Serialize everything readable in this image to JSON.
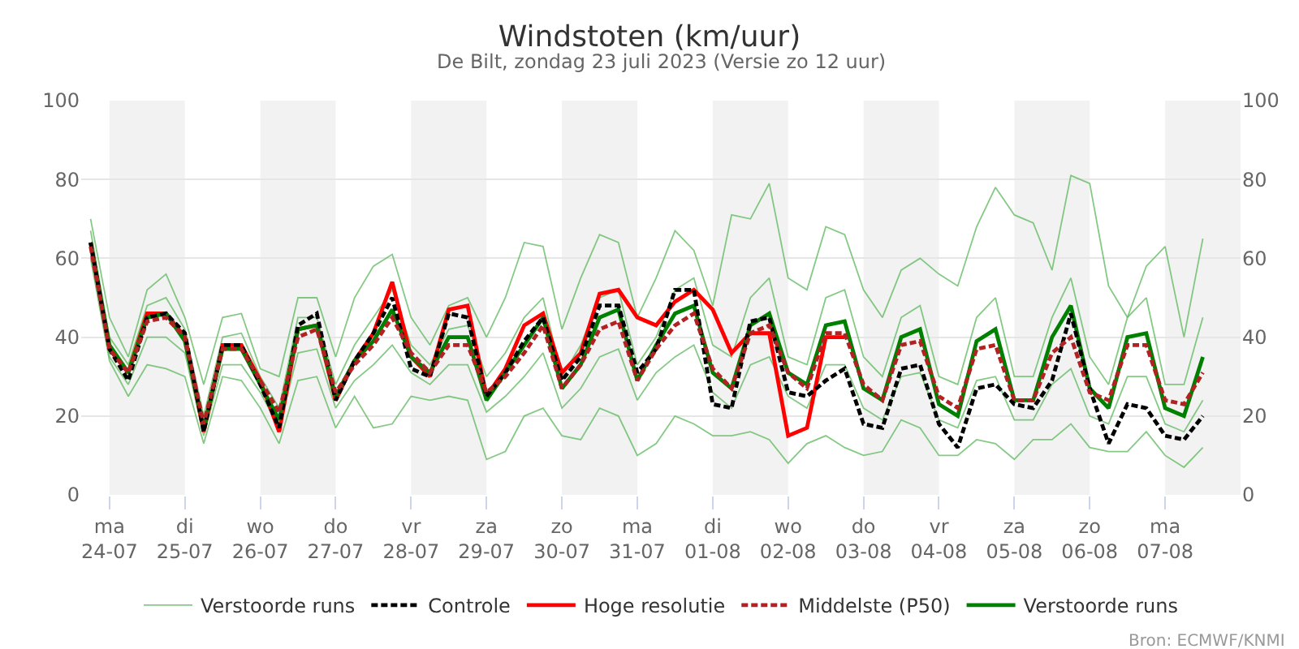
{
  "chart_data": {
    "type": "line",
    "title": "Windstoten (km/uur)",
    "subtitle": "De Bilt, zondag 23 juli 2023 (Versie zo 12 uur)",
    "x": [
      "2023-07-23T18:00",
      "2023-07-24T00:00",
      "2023-07-24T06:00",
      "2023-07-24T12:00",
      "2023-07-24T18:00",
      "2023-07-25T00:00",
      "2023-07-25T06:00",
      "2023-07-25T12:00",
      "2023-07-25T18:00",
      "2023-07-26T00:00",
      "2023-07-26T06:00",
      "2023-07-26T12:00",
      "2023-07-26T18:00",
      "2023-07-27T00:00",
      "2023-07-27T06:00",
      "2023-07-27T12:00",
      "2023-07-27T18:00",
      "2023-07-28T00:00",
      "2023-07-28T06:00",
      "2023-07-28T12:00",
      "2023-07-28T18:00",
      "2023-07-29T00:00",
      "2023-07-29T06:00",
      "2023-07-29T12:00",
      "2023-07-29T18:00",
      "2023-07-30T00:00",
      "2023-07-30T06:00",
      "2023-07-30T12:00",
      "2023-07-30T18:00",
      "2023-07-31T00:00",
      "2023-07-31T06:00",
      "2023-07-31T12:00",
      "2023-07-31T18:00",
      "2023-08-01T00:00",
      "2023-08-01T06:00",
      "2023-08-01T12:00",
      "2023-08-01T18:00",
      "2023-08-02T00:00",
      "2023-08-02T06:00",
      "2023-08-02T12:00",
      "2023-08-02T18:00",
      "2023-08-03T00:00",
      "2023-08-03T06:00",
      "2023-08-03T12:00",
      "2023-08-03T18:00",
      "2023-08-04T00:00",
      "2023-08-04T06:00",
      "2023-08-04T12:00",
      "2023-08-04T18:00",
      "2023-08-05T00:00",
      "2023-08-05T06:00",
      "2023-08-05T12:00",
      "2023-08-05T18:00",
      "2023-08-06T00:00",
      "2023-08-06T06:00",
      "2023-08-06T12:00",
      "2023-08-06T18:00",
      "2023-08-07T00:00",
      "2023-08-07T06:00",
      "2023-08-07T12:00"
    ],
    "series": [
      {
        "name": "Verstoorde runs",
        "color": "#5cb85c",
        "line_style": "solid",
        "values": [
          70,
          45,
          35,
          52,
          56,
          45,
          28,
          45,
          46,
          32,
          30,
          50,
          50,
          35,
          50,
          58,
          61,
          45,
          38,
          48,
          50,
          40,
          50,
          64,
          63,
          42,
          55,
          66,
          64,
          45,
          55,
          67,
          62,
          48,
          71,
          70,
          79,
          55,
          52,
          68,
          66,
          52,
          45,
          57,
          60,
          56,
          53,
          68,
          78,
          71,
          69,
          57,
          81,
          79,
          53,
          45,
          58,
          63,
          40,
          65
        ]
      },
      {
        "color": "#5cb85c",
        "line_style": "solid",
        "values": [
          60,
          34,
          25,
          33,
          32,
          30,
          13,
          30,
          29,
          22,
          13,
          29,
          30,
          17,
          25,
          17,
          18,
          25,
          24,
          25,
          24,
          9,
          11,
          20,
          22,
          15,
          14,
          22,
          20,
          10,
          13,
          20,
          18,
          15,
          15,
          16,
          14,
          8,
          13,
          15,
          12,
          10,
          11,
          19,
          17,
          10,
          10,
          14,
          13,
          9,
          14,
          14,
          18,
          12,
          11,
          11,
          16,
          10,
          7,
          12
        ]
      },
      {
        "color": "#5cb85c",
        "line_style": "solid",
        "values": [
          67,
          40,
          33,
          48,
          50,
          42,
          20,
          40,
          41,
          30,
          22,
          45,
          45,
          28,
          38,
          45,
          52,
          38,
          33,
          42,
          43,
          30,
          36,
          45,
          50,
          30,
          38,
          50,
          52,
          33,
          40,
          52,
          55,
          38,
          35,
          50,
          55,
          35,
          33,
          50,
          52,
          35,
          30,
          45,
          48,
          30,
          28,
          45,
          50,
          30,
          30,
          45,
          55,
          35,
          28,
          45,
          50,
          28,
          28,
          45
        ]
      },
      {
        "color": "#5cb85c",
        "line_style": "solid",
        "values": [
          61,
          35,
          28,
          40,
          40,
          36,
          15,
          33,
          33,
          26,
          17,
          36,
          37,
          22,
          29,
          33,
          38,
          31,
          28,
          33,
          33,
          21,
          25,
          30,
          36,
          22,
          27,
          35,
          37,
          24,
          31,
          35,
          38,
          26,
          22,
          33,
          35,
          25,
          22,
          33,
          33,
          22,
          19,
          30,
          31,
          19,
          17,
          29,
          30,
          19,
          19,
          28,
          32,
          20,
          18,
          30,
          30,
          18,
          16,
          24
        ]
      },
      {
        "name": "Controle",
        "color": "#000000",
        "line_style": "dashed",
        "values": [
          64,
          37,
          29,
          45,
          46,
          41,
          16,
          38,
          38,
          28,
          17,
          43,
          46,
          24,
          34,
          41,
          50,
          32,
          30,
          46,
          45,
          25,
          31,
          39,
          45,
          29,
          35,
          48,
          48,
          31,
          37,
          52,
          52,
          23,
          22,
          44,
          45,
          26,
          25,
          29,
          32,
          18,
          17,
          32,
          33,
          18,
          12,
          27,
          28,
          23,
          22,
          29,
          46,
          27,
          13,
          23,
          22,
          15,
          14,
          20
        ]
      },
      {
        "name": "Hoge resolutie",
        "color": "#ff0000",
        "line_style": "solid",
        "values": [
          64,
          37,
          31,
          46,
          46,
          40,
          16,
          38,
          38,
          29,
          16,
          42,
          43,
          24,
          34,
          41,
          54,
          35,
          30,
          47,
          48,
          25,
          32,
          43,
          46,
          31,
          36,
          51,
          52,
          45,
          43,
          49,
          52,
          47,
          36,
          41,
          41,
          15,
          17,
          40,
          40,
          null,
          null,
          null,
          null,
          null,
          null,
          null,
          null,
          null,
          null,
          null,
          null,
          null,
          null,
          null,
          null,
          null,
          null,
          null
        ]
      },
      {
        "name": "Middelste (P50)",
        "color": "#b22222",
        "line_style": "dashed",
        "values": [
          63,
          37,
          31,
          44,
          45,
          40,
          18,
          37,
          37,
          29,
          21,
          40,
          42,
          26,
          33,
          38,
          45,
          36,
          31,
          38,
          38,
          26,
          30,
          36,
          43,
          27,
          33,
          42,
          44,
          29,
          37,
          43,
          46,
          32,
          27,
          41,
          43,
          31,
          27,
          41,
          41,
          28,
          24,
          38,
          39,
          25,
          22,
          37,
          38,
          24,
          24,
          36,
          40,
          26,
          24,
          38,
          38,
          24,
          23,
          31
        ]
      },
      {
        "name": "Verstoorde runs",
        "color": "#008000",
        "line_style": "solid",
        "values": [
          64,
          38,
          31,
          45,
          46,
          39,
          17,
          37,
          37,
          28,
          19,
          42,
          43,
          25,
          34,
          39,
          47,
          35,
          31,
          40,
          40,
          24,
          31,
          38,
          45,
          27,
          33,
          45,
          47,
          29,
          38,
          46,
          48,
          31,
          27,
          43,
          46,
          31,
          28,
          43,
          44,
          27,
          24,
          40,
          42,
          23,
          20,
          39,
          42,
          24,
          24,
          40,
          48,
          27,
          22,
          40,
          41,
          22,
          20,
          35
        ]
      }
    ],
    "xlim": [
      "2023-07-23T15:00",
      "2023-08-08T00:00"
    ],
    "xticks": [
      {
        "value": "2023-07-24",
        "label": "ma\n24-07"
      },
      {
        "value": "2023-07-25",
        "label": "di\n25-07"
      },
      {
        "value": "2023-07-26",
        "label": "wo\n26-07"
      },
      {
        "value": "2023-07-27",
        "label": "do\n27-07"
      },
      {
        "value": "2023-07-28",
        "label": "vr\n28-07"
      },
      {
        "value": "2023-07-29",
        "label": "za\n29-07"
      },
      {
        "value": "2023-07-30",
        "label": "zo\n30-07"
      },
      {
        "value": "2023-07-31",
        "label": "ma\n31-07"
      },
      {
        "value": "2023-08-01",
        "label": "di\n01-08"
      },
      {
        "value": "2023-08-02",
        "label": "wo\n02-08"
      },
      {
        "value": "2023-08-03",
        "label": "do\n03-08"
      },
      {
        "value": "2023-08-04",
        "label": "vr\n04-08"
      },
      {
        "value": "2023-08-05",
        "label": "za\n05-08"
      },
      {
        "value": "2023-08-06",
        "label": "zo\n06-08"
      },
      {
        "value": "2023-08-07",
        "label": "ma\n07-08"
      }
    ],
    "ylim": [
      0,
      100
    ],
    "yticks": [
      0,
      20,
      40,
      60,
      80,
      100
    ],
    "y2lim": [
      0,
      100
    ],
    "y2ticks": [
      0,
      20,
      40,
      60,
      80,
      100
    ],
    "bands": [
      {
        "axis": "x",
        "from": "2023-07-24",
        "to": "2023-07-25",
        "color": "#f2f2f2"
      },
      {
        "axis": "x",
        "from": "2023-07-26",
        "to": "2023-07-27",
        "color": "#f2f2f2"
      },
      {
        "axis": "x",
        "from": "2023-07-28",
        "to": "2023-07-29",
        "color": "#f2f2f2"
      },
      {
        "axis": "x",
        "from": "2023-07-30",
        "to": "2023-07-31",
        "color": "#f2f2f2"
      },
      {
        "axis": "x",
        "from": "2023-08-01",
        "to": "2023-08-02",
        "color": "#f2f2f2"
      },
      {
        "axis": "x",
        "from": "2023-08-03",
        "to": "2023-08-04",
        "color": "#f2f2f2"
      },
      {
        "axis": "x",
        "from": "2023-08-05",
        "to": "2023-08-06",
        "color": "#f2f2f2"
      },
      {
        "axis": "x",
        "from": "2023-08-07",
        "to": "2023-08-08",
        "color": "#f2f2f2"
      }
    ],
    "grid": "y",
    "legend": "bottom",
    "marker": "none",
    "annotations": [
      "Bron: ECMWF/KNMI"
    ]
  }
}
